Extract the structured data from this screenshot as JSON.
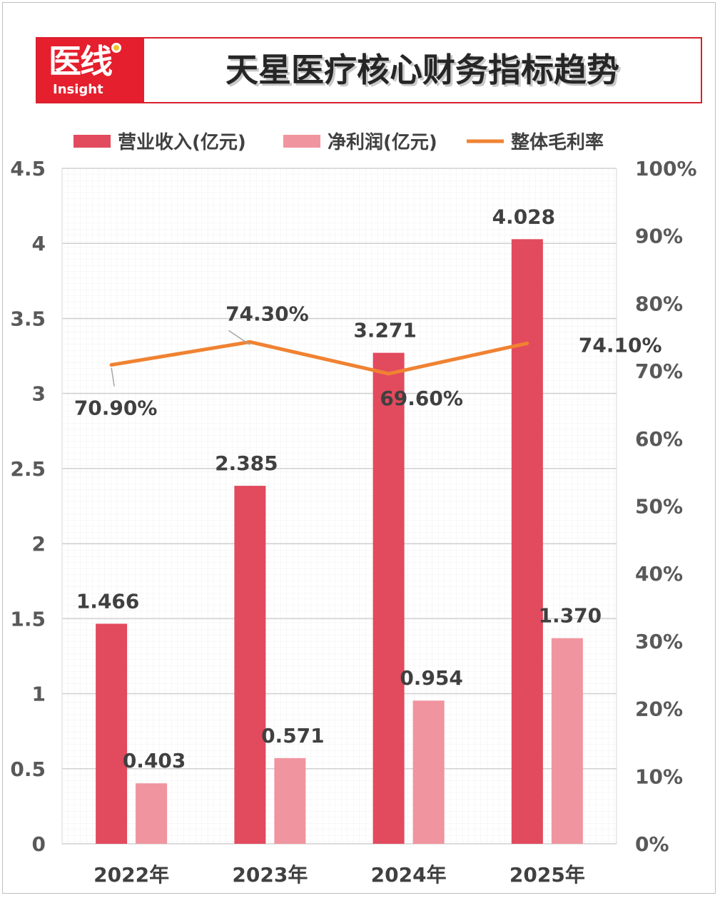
{
  "header": {
    "logo_text": "医线",
    "logo_subtext": "Insight",
    "title": "天星医疗核心财务指标趋势"
  },
  "colors": {
    "revenue": "#e24a5e",
    "profit": "#f0949f",
    "margin": "#f08232",
    "brand_red": "#e51f2d"
  },
  "chart_data": {
    "type": "bar",
    "categories": [
      "2022年",
      "2023年",
      "2024年",
      "2025年"
    ],
    "series": [
      {
        "name": "营业收入(亿元)",
        "type": "bar",
        "axis": "left",
        "values": [
          1.466,
          2.385,
          3.271,
          4.028
        ],
        "labels": [
          "1.466",
          "2.385",
          "3.271",
          "4.028"
        ]
      },
      {
        "name": "净利润(亿元)",
        "type": "bar",
        "axis": "left",
        "values": [
          0.403,
          0.571,
          0.954,
          1.37
        ],
        "labels": [
          "0.403",
          "0.571",
          "0.954",
          "1.370"
        ]
      },
      {
        "name": "整体毛利率",
        "type": "line",
        "axis": "right",
        "values": [
          70.9,
          74.3,
          69.6,
          74.1
        ],
        "labels": [
          "70.90%",
          "74.30%",
          "69.60%",
          "74.10%"
        ]
      }
    ],
    "y_left": {
      "ylim": [
        0,
        4.5
      ],
      "ticks": [
        "0",
        "0.5",
        "1",
        "1.5",
        "2",
        "2.5",
        "3",
        "3.5",
        "4",
        "4.5"
      ]
    },
    "y_right": {
      "ylim": [
        0,
        100
      ],
      "ticks": [
        "0%",
        "10%",
        "20%",
        "30%",
        "40%",
        "50%",
        "60%",
        "70%",
        "80%",
        "90%",
        "100%"
      ]
    },
    "grid": true,
    "legend": "top"
  }
}
